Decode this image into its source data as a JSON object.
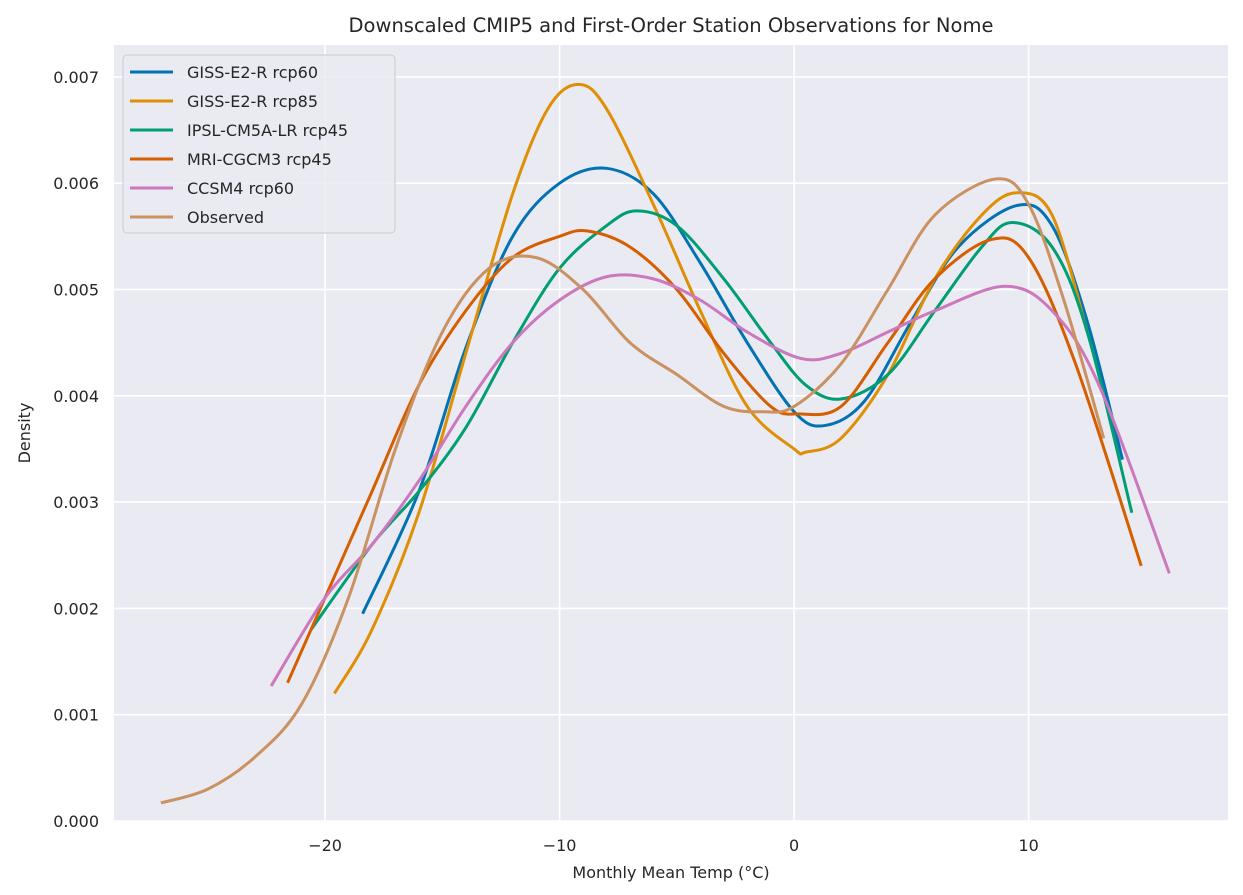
{
  "chart_data": {
    "type": "line",
    "title": "Downscaled CMIP5 and First-Order Station Observations for Nome",
    "xlabel": "Monthly Mean Temp (°C)",
    "ylabel": "Density",
    "xlim": [
      -29,
      18.5
    ],
    "ylim": [
      0,
      0.0073
    ],
    "xticks": [
      -20,
      -10,
      0,
      10
    ],
    "xtick_labels": [
      "−20",
      "−10",
      "0",
      "10"
    ],
    "yticks": [
      0,
      0.001,
      0.002,
      0.003,
      0.004,
      0.005,
      0.006,
      0.007
    ],
    "ytick_labels": [
      "0.000",
      "0.001",
      "0.002",
      "0.003",
      "0.004",
      "0.005",
      "0.006",
      "0.007"
    ],
    "grid": true,
    "legend_position": "top-left",
    "series": [
      {
        "name": "GISS-E2-R rcp60",
        "color": "#0173b2",
        "x": [
          -18.4,
          -16,
          -14,
          -12,
          -10,
          -8,
          -6,
          -4,
          -2,
          0,
          1.3,
          3,
          5,
          7,
          9.5,
          11,
          12.5,
          14
        ],
        "y": [
          0.00195,
          0.0031,
          0.00445,
          0.0055,
          0.006,
          0.00614,
          0.0059,
          0.00525,
          0.0045,
          0.00385,
          0.00372,
          0.00395,
          0.0047,
          0.0054,
          0.00579,
          0.0056,
          0.0047,
          0.0034
        ]
      },
      {
        "name": "GISS-E2-R rcp85",
        "color": "#de8f05",
        "x": [
          -19.6,
          -18,
          -16,
          -14,
          -12,
          -10.5,
          -9.2,
          -8,
          -6,
          -4,
          -2,
          0,
          0.5,
          2,
          4,
          6,
          8,
          9.5,
          11,
          12.5
        ],
        "y": [
          0.0012,
          0.0018,
          0.0029,
          0.0044,
          0.0059,
          0.0067,
          0.00693,
          0.0067,
          0.0058,
          0.0048,
          0.0039,
          0.0035,
          0.00347,
          0.0036,
          0.0042,
          0.0051,
          0.0057,
          0.00591,
          0.0057,
          0.0046
        ]
      },
      {
        "name": "IPSL-CM5A-LR rcp45",
        "color": "#029e73",
        "x": [
          -20.6,
          -18,
          -16,
          -14,
          -12,
          -10,
          -8,
          -6.7,
          -5,
          -3,
          -1,
          0.5,
          2,
          4,
          6,
          8,
          9.3,
          11,
          12.5,
          14.4
        ],
        "y": [
          0.0018,
          0.0026,
          0.0031,
          0.0037,
          0.0045,
          0.0052,
          0.0056,
          0.00574,
          0.0056,
          0.0051,
          0.0045,
          0.0041,
          0.00397,
          0.0042,
          0.0048,
          0.0054,
          0.00563,
          0.0054,
          0.0046,
          0.0029
        ]
      },
      {
        "name": "MRI-CGCM3 rcp45",
        "color": "#d55e00",
        "x": [
          -21.6,
          -20,
          -18,
          -16,
          -14,
          -12,
          -10,
          -8.8,
          -7,
          -5,
          -3,
          -1,
          0.2,
          2,
          4,
          6,
          8.4,
          10,
          12,
          14.8
        ],
        "y": [
          0.0013,
          0.0021,
          0.0031,
          0.0041,
          0.0048,
          0.0053,
          0.0055,
          0.00555,
          0.0054,
          0.005,
          0.0044,
          0.0039,
          0.00383,
          0.0039,
          0.0045,
          0.0051,
          0.00547,
          0.0053,
          0.0043,
          0.0024
        ]
      },
      {
        "name": "CCSM4 rcp60",
        "color": "#cc78bc",
        "x": [
          -22.3,
          -20,
          -18,
          -16,
          -14,
          -12,
          -10,
          -8,
          -6,
          -4,
          -2,
          0.3,
          2,
          4,
          6,
          9,
          11,
          13,
          16
        ],
        "y": [
          0.00127,
          0.0021,
          0.0026,
          0.0032,
          0.0039,
          0.0045,
          0.0049,
          0.00512,
          0.0051,
          0.0049,
          0.0046,
          0.00435,
          0.0044,
          0.0046,
          0.0048,
          0.00503,
          0.0048,
          0.0041,
          0.00233
        ]
      },
      {
        "name": "Observed",
        "color": "#ca9161",
        "x": [
          -27,
          -25,
          -23,
          -21,
          -19,
          -17,
          -15,
          -13,
          -11,
          -9,
          -7,
          -5,
          -3,
          -1.3,
          0,
          2,
          4,
          6,
          8.6,
          10,
          11.5,
          13.2
        ],
        "y": [
          0.00017,
          0.0003,
          0.0006,
          0.0011,
          0.0021,
          0.0035,
          0.0046,
          0.0052,
          0.0053,
          0.005,
          0.0045,
          0.0042,
          0.0039,
          0.00385,
          0.0039,
          0.0043,
          0.005,
          0.0057,
          0.00604,
          0.0058,
          0.0049,
          0.0036
        ]
      }
    ]
  }
}
